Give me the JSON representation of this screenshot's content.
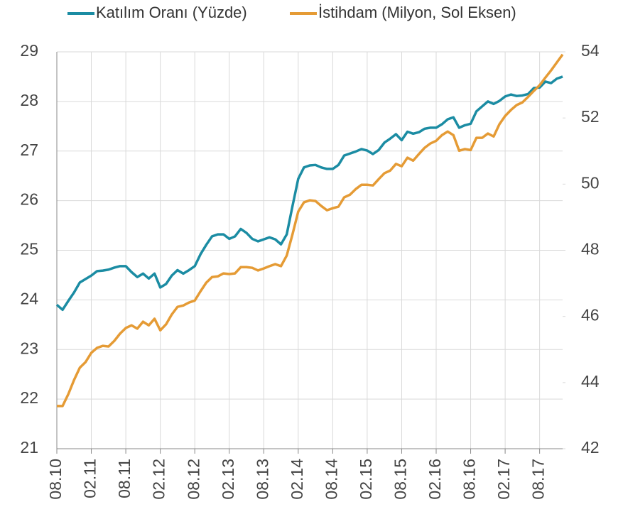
{
  "chart_data": {
    "type": "line",
    "categories": [
      "08.10",
      null,
      null,
      null,
      null,
      null,
      "02.11",
      null,
      null,
      null,
      null,
      null,
      "08.11",
      null,
      null,
      null,
      null,
      null,
      "02.12",
      null,
      null,
      null,
      null,
      null,
      "08.12",
      null,
      null,
      null,
      null,
      null,
      "02.13",
      null,
      null,
      null,
      null,
      null,
      "08.13",
      null,
      null,
      null,
      null,
      null,
      "02.14",
      null,
      null,
      null,
      null,
      null,
      "08.14",
      null,
      null,
      null,
      null,
      null,
      "02.15",
      null,
      null,
      null,
      null,
      null,
      "08.15",
      null,
      null,
      null,
      null,
      null,
      "02.16",
      null,
      null,
      null,
      null,
      null,
      "08.16",
      null,
      null,
      null,
      null,
      null,
      "02.17",
      null,
      null,
      null,
      null,
      null,
      "08.17",
      null,
      null,
      null,
      null
    ],
    "series": [
      {
        "name": "Katılım Oranı (Yüzde)",
        "color": "#1b8ca3",
        "values": [
          23.9,
          23.8,
          23.98,
          24.15,
          24.35,
          24.42,
          24.49,
          24.58,
          24.59,
          24.61,
          24.65,
          24.68,
          24.68,
          24.56,
          24.46,
          24.53,
          24.43,
          24.53,
          24.25,
          24.32,
          24.49,
          24.6,
          24.53,
          24.6,
          24.68,
          24.92,
          25.11,
          25.28,
          25.32,
          25.32,
          25.23,
          25.28,
          25.43,
          25.35,
          25.23,
          25.18,
          25.22,
          25.26,
          25.22,
          25.12,
          25.32,
          25.89,
          26.44,
          26.67,
          26.71,
          26.72,
          26.67,
          26.64,
          26.64,
          26.72,
          26.91,
          26.95,
          26.99,
          27.04,
          27.01,
          26.94,
          27.02,
          27.17,
          27.25,
          27.34,
          27.22,
          27.39,
          27.35,
          27.38,
          27.45,
          27.47,
          27.47,
          27.54,
          27.64,
          27.68,
          27.47,
          27.52,
          27.55,
          27.8,
          27.9,
          28.0,
          27.95,
          28.01,
          28.1,
          28.14,
          28.11,
          28.12,
          28.15,
          28.27,
          28.28,
          28.4,
          28.37,
          28.46,
          28.5
        ]
      },
      {
        "name": "İstihdam (Milyon, Sol Eksen)",
        "color": "#e59b35",
        "axis": "y2",
        "values": [
          43.29,
          43.29,
          43.65,
          44.08,
          44.45,
          44.62,
          44.9,
          45.05,
          45.11,
          45.09,
          45.26,
          45.48,
          45.65,
          45.73,
          45.63,
          45.84,
          45.73,
          45.93,
          45.58,
          45.76,
          46.06,
          46.29,
          46.33,
          46.42,
          46.48,
          46.76,
          47.02,
          47.19,
          47.21,
          47.3,
          47.28,
          47.3,
          47.49,
          47.49,
          47.47,
          47.39,
          47.45,
          47.52,
          47.58,
          47.52,
          47.84,
          48.48,
          49.17,
          49.45,
          49.51,
          49.49,
          49.34,
          49.21,
          49.27,
          49.32,
          49.6,
          49.68,
          49.85,
          49.98,
          49.98,
          49.96,
          50.15,
          50.33,
          50.41,
          50.61,
          50.54,
          50.8,
          50.71,
          50.91,
          51.1,
          51.23,
          51.31,
          51.48,
          51.59,
          51.48,
          51.01,
          51.06,
          51.03,
          51.4,
          51.4,
          51.53,
          51.44,
          51.81,
          52.06,
          52.24,
          52.39,
          52.47,
          52.64,
          52.82,
          52.99,
          53.22,
          53.44,
          53.68,
          53.92
        ]
      }
    ],
    "ylim": [
      21,
      29
    ],
    "yticks": [
      21,
      22,
      23,
      24,
      25,
      26,
      27,
      28,
      29
    ],
    "y2lim": [
      42,
      54
    ],
    "y2ticks": [
      42,
      44,
      46,
      48,
      50,
      52,
      54
    ],
    "grid": true
  }
}
